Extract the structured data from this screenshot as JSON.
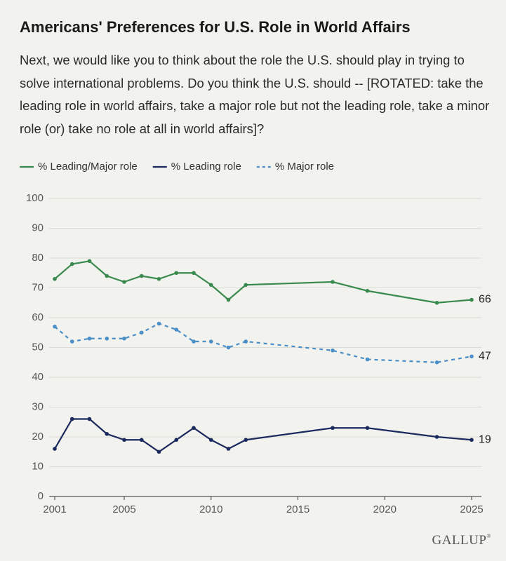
{
  "chart_data": {
    "type": "line",
    "title": "Americans' Preferences for U.S. Role in World Affairs",
    "subtitle": "Next, we would like you to think about the role the U.S. should play in trying to solve international problems. Do you think the U.S. should -- [ROTATED: take the leading role in world affairs, take a major role but not the leading role, take a minor role (or) take no role at all in world affairs]?",
    "x": [
      2001,
      2002,
      2003,
      2004,
      2005,
      2006,
      2007,
      2008,
      2009,
      2010,
      2011,
      2012,
      2017,
      2019,
      2023,
      2025
    ],
    "series": [
      {
        "name": "% Leading/Major role",
        "color": "#3a8a4f",
        "line_style": "solid",
        "values": [
          73,
          78,
          79,
          74,
          72,
          74,
          73,
          75,
          75,
          71,
          66,
          71,
          72,
          69,
          65,
          66
        ]
      },
      {
        "name": "% Leading role",
        "color": "#1b2a5e",
        "line_style": "solid",
        "values": [
          16,
          26,
          26,
          21,
          19,
          19,
          15,
          19,
          23,
          19,
          16,
          19,
          23,
          23,
          20,
          19
        ]
      },
      {
        "name": "% Major role",
        "color": "#4a8fc7",
        "line_style": "dashed",
        "values": [
          57,
          52,
          53,
          53,
          53,
          55,
          58,
          56,
          52,
          52,
          50,
          52,
          49,
          46,
          45,
          47
        ]
      }
    ],
    "xlim": [
      2001,
      2025
    ],
    "xticks": [
      2001,
      2005,
      2010,
      2015,
      2020,
      2025
    ],
    "ylim": [
      0,
      100
    ],
    "yticks": [
      0,
      10,
      20,
      30,
      40,
      50,
      60,
      70,
      80,
      90,
      100
    ],
    "grid": true,
    "legend_position": "top",
    "end_labels": true,
    "logo": "GALLUP",
    "logo_mark": "®"
  }
}
